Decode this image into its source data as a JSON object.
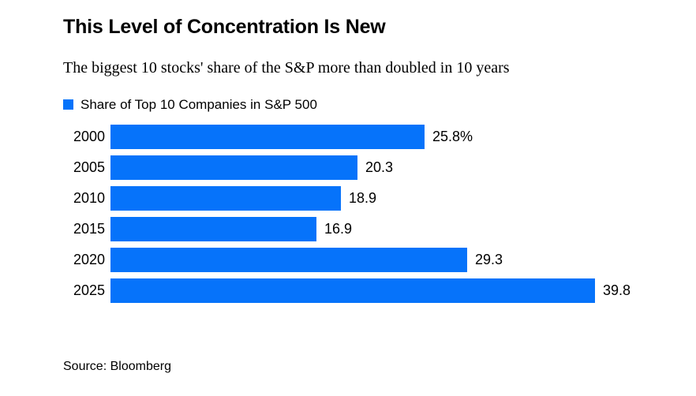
{
  "header": {
    "title": "This Level of Concentration Is New",
    "subtitle": "The biggest 10 stocks' share of the S&P more than doubled in 10 years"
  },
  "legend": {
    "label": "Share of Top 10 Companies in S&P 500"
  },
  "chart_data": {
    "type": "bar",
    "orientation": "horizontal",
    "title": "Share of Top 10 Companies in S&P 500",
    "categories": [
      "2000",
      "2005",
      "2010",
      "2015",
      "2020",
      "2025"
    ],
    "values": [
      25.8,
      20.3,
      18.9,
      16.9,
      29.3,
      39.8
    ],
    "value_labels": [
      "25.8%",
      "20.3",
      "18.9",
      "16.9",
      "29.3",
      "39.8"
    ],
    "unit": "%",
    "xlabel": "",
    "ylabel": "",
    "xlim": [
      0,
      40
    ],
    "grid": false,
    "legend_position": "top",
    "bar_color": "#0673FA",
    "label_color": "#000000"
  },
  "footer": {
    "source": "Source: Bloomberg"
  }
}
